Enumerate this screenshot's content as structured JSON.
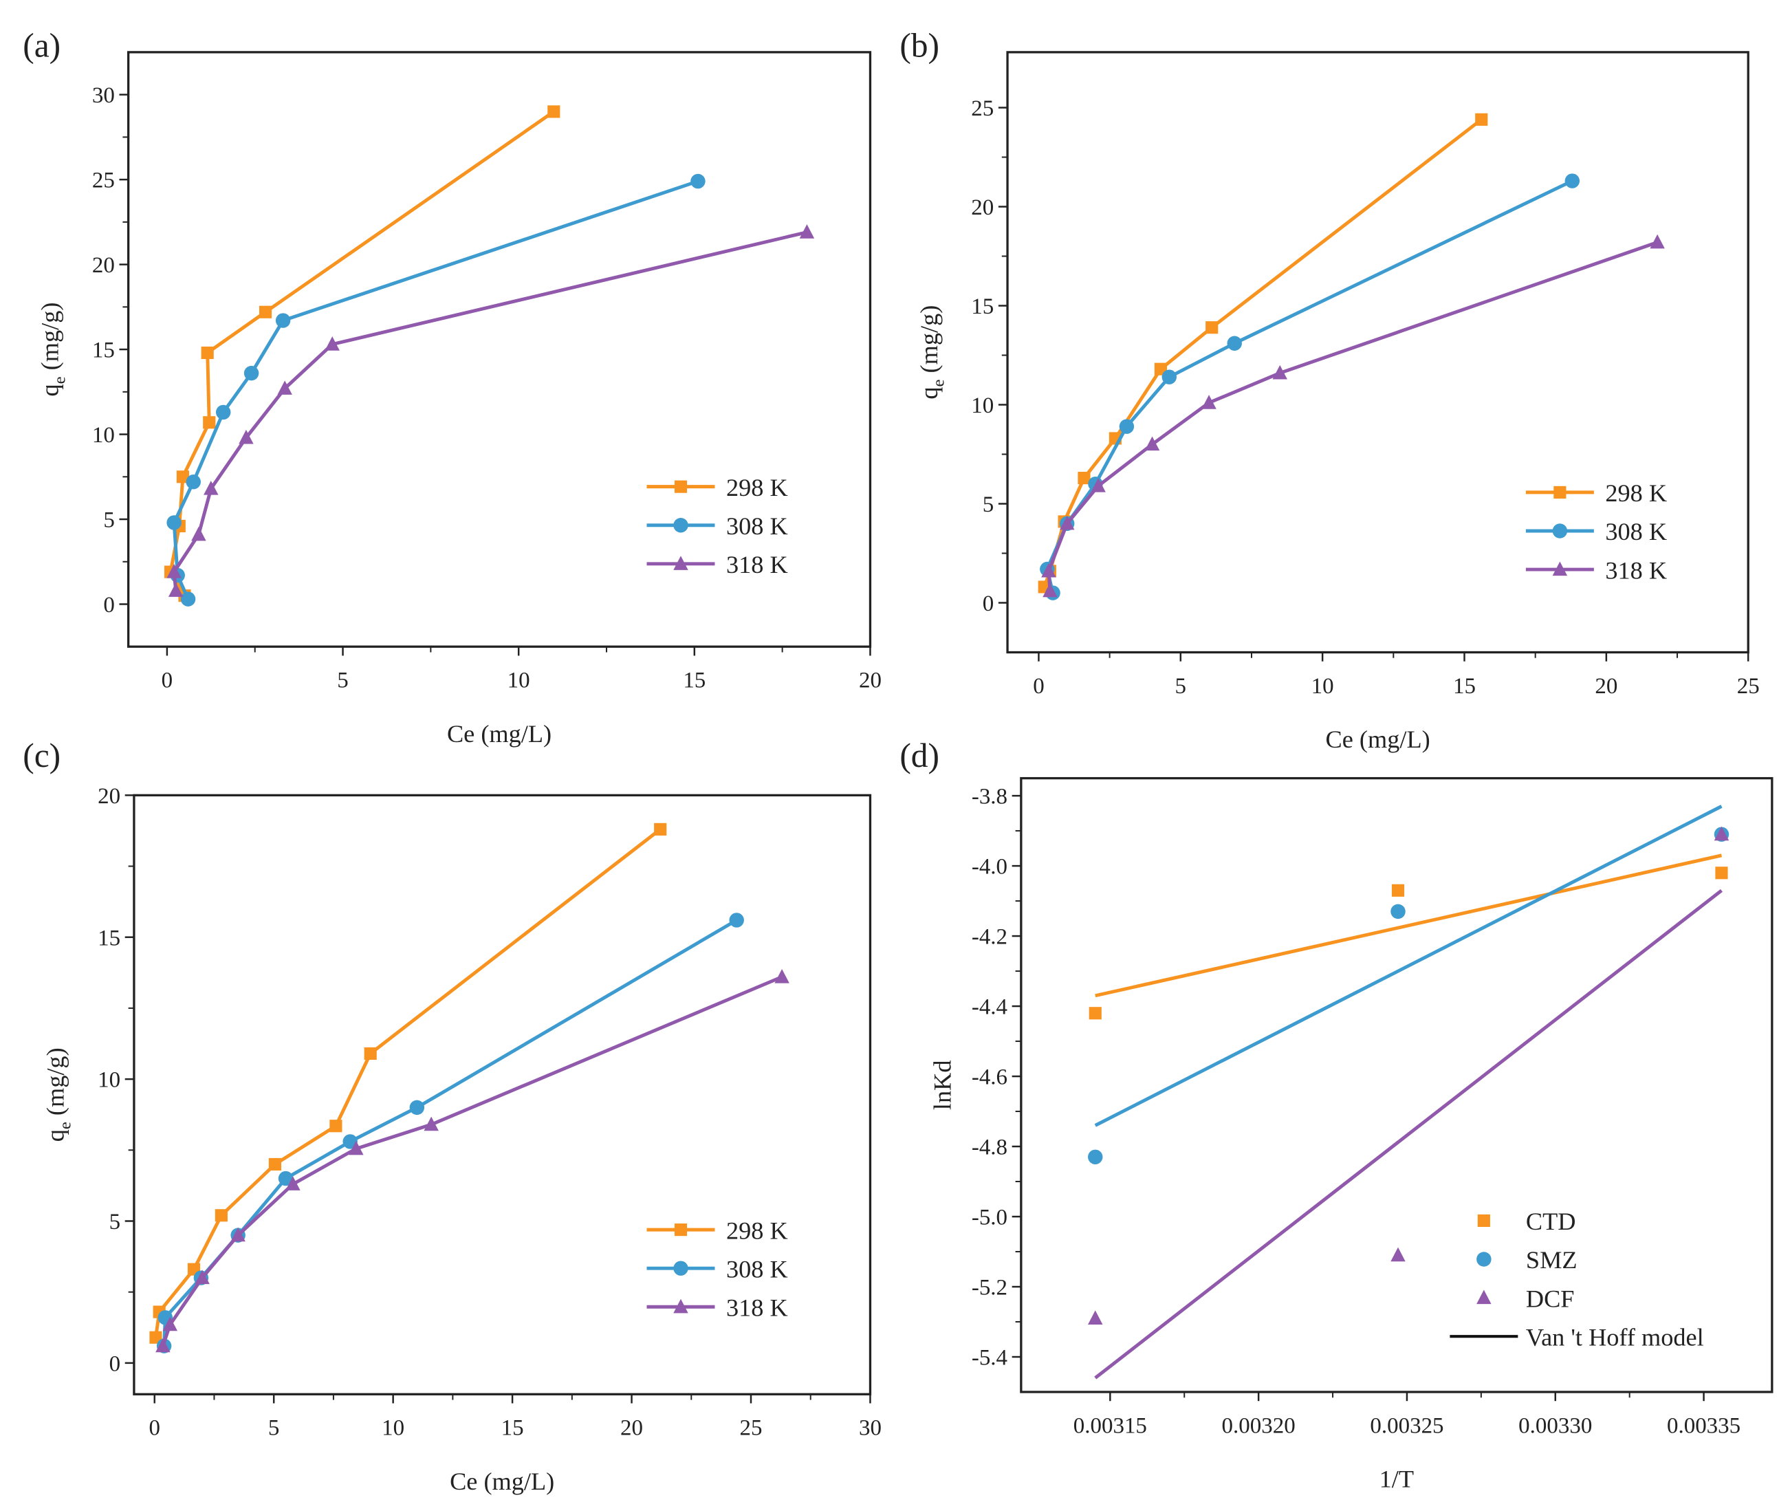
{
  "colors": {
    "c298": "#F7931E",
    "c308": "#3E9BCF",
    "c318": "#9159AC",
    "fit_legend": "#111111"
  },
  "chart_data": [
    {
      "panel": "(a)",
      "type": "line",
      "xlabel": "Ce (mg/L)",
      "ylabel_main": "q",
      "ylabel_sub": "e",
      "ylabel_rest": " (mg/g)",
      "xlim": [
        -1.1,
        20
      ],
      "ylim": [
        -2.5,
        32.5
      ],
      "xticks": [
        0,
        5,
        10,
        15,
        20
      ],
      "yticks": [
        0,
        5,
        10,
        15,
        20,
        25,
        30
      ],
      "legend_position": "bottom-right",
      "series": [
        {
          "name": "298 K",
          "marker": "square",
          "color_key": "c298",
          "x": [
            0.5,
            0.1,
            0.35,
            0.45,
            1.2,
            1.15,
            2.8,
            11.0
          ],
          "y": [
            0.5,
            1.9,
            4.6,
            7.5,
            10.7,
            14.8,
            17.2,
            29.0
          ]
        },
        {
          "name": "308 K",
          "marker": "circle",
          "color_key": "c308",
          "x": [
            0.6,
            0.3,
            0.2,
            0.75,
            1.6,
            2.4,
            3.3,
            15.1
          ],
          "y": [
            0.3,
            1.7,
            4.8,
            7.2,
            11.3,
            13.6,
            16.7,
            24.9
          ]
        },
        {
          "name": "318 K",
          "marker": "triangle",
          "color_key": "c318",
          "x": [
            0.25,
            0.2,
            0.9,
            1.25,
            2.25,
            3.35,
            4.7,
            18.2
          ],
          "y": [
            0.8,
            1.9,
            4.1,
            6.8,
            9.8,
            12.7,
            15.3,
            21.9
          ]
        }
      ]
    },
    {
      "panel": "(b)",
      "type": "line",
      "xlabel": "Ce (mg/L)",
      "ylabel_main": "q",
      "ylabel_sub": "e",
      "ylabel_rest": " (mg/g)",
      "xlim": [
        -1.1,
        25
      ],
      "ylim": [
        -2.5,
        27.8
      ],
      "xticks": [
        0,
        5,
        10,
        15,
        20,
        25
      ],
      "yticks": [
        0,
        5,
        10,
        15,
        20,
        25
      ],
      "legend_position": "bottom-right",
      "series": [
        {
          "name": "298 K",
          "marker": "square",
          "color_key": "c298",
          "x": [
            0.2,
            0.4,
            0.9,
            1.6,
            2.7,
            4.3,
            6.1,
            15.6
          ],
          "y": [
            0.8,
            1.6,
            4.1,
            6.3,
            8.3,
            11.8,
            13.9,
            24.4
          ]
        },
        {
          "name": "308 K",
          "marker": "circle",
          "color_key": "c308",
          "x": [
            0.5,
            0.3,
            1.0,
            2.0,
            3.1,
            4.6,
            6.9,
            18.8
          ],
          "y": [
            0.5,
            1.7,
            4.0,
            6.0,
            8.9,
            11.4,
            13.1,
            21.3
          ]
        },
        {
          "name": "318 K",
          "marker": "triangle",
          "color_key": "c318",
          "x": [
            0.4,
            0.35,
            1.0,
            2.1,
            4.0,
            6.0,
            8.5,
            21.8
          ],
          "y": [
            0.6,
            1.6,
            4.0,
            5.9,
            8.0,
            10.1,
            11.6,
            18.2
          ]
        }
      ]
    },
    {
      "panel": "(c)",
      "type": "line",
      "xlabel": "Ce (mg/L)",
      "ylabel_main": "q",
      "ylabel_sub": "e",
      "ylabel_rest": " (mg/g)",
      "xlim": [
        -0.86,
        30
      ],
      "ylim": [
        -1.1,
        20
      ],
      "xticks": [
        0,
        5,
        10,
        15,
        20,
        25,
        30
      ],
      "yticks": [
        0,
        5,
        10,
        15,
        20
      ],
      "legend_position": "bottom-right",
      "series": [
        {
          "name": "298 K",
          "marker": "square",
          "color_key": "c298",
          "x": [
            0.05,
            0.2,
            1.65,
            2.8,
            5.05,
            7.6,
            9.05,
            21.2
          ],
          "y": [
            0.9,
            1.8,
            3.3,
            5.2,
            7.0,
            8.35,
            10.9,
            18.8
          ]
        },
        {
          "name": "308 K",
          "marker": "circle",
          "color_key": "c308",
          "x": [
            0.4,
            0.45,
            1.95,
            3.5,
            5.5,
            8.2,
            11.0,
            24.4
          ],
          "y": [
            0.6,
            1.6,
            3.0,
            4.5,
            6.5,
            7.8,
            9.0,
            15.6
          ]
        },
        {
          "name": "318 K",
          "marker": "triangle",
          "color_key": "c318",
          "x": [
            0.35,
            0.65,
            2.0,
            3.5,
            5.8,
            8.45,
            11.6,
            26.3
          ],
          "y": [
            0.6,
            1.35,
            3.0,
            4.5,
            6.3,
            7.55,
            8.4,
            13.6
          ]
        }
      ]
    },
    {
      "panel": "(d)",
      "type": "scatter",
      "xlabel": "1/T",
      "ylabel_main": "lnKd",
      "ylabel_sub": "",
      "ylabel_rest": "",
      "xlim": [
        0.00312,
        0.003373
      ],
      "ylim": [
        -5.5,
        -3.75
      ],
      "xticks": [
        "0.00315",
        "0.00320",
        "0.00325",
        "0.00330",
        "0.00335"
      ],
      "yticks": [
        "-3.8",
        "-4.0",
        "-4.2",
        "-4.4",
        "-4.6",
        "-4.8",
        "-5.0",
        "-5.2",
        "-5.4"
      ],
      "legend_position": "bottom-right",
      "fit_legend": "Van 't Hoff model",
      "series": [
        {
          "name": "CTD",
          "marker": "square",
          "color_key": "c298",
          "x": [
            0.003145,
            0.003247,
            0.003356
          ],
          "y": [
            -4.42,
            -4.07,
            -4.02
          ],
          "fit": {
            "x": [
              0.003145,
              0.003356
            ],
            "y": [
              -4.37,
              -3.97
            ]
          }
        },
        {
          "name": "SMZ",
          "marker": "circle",
          "color_key": "c308",
          "x": [
            0.003145,
            0.003247,
            0.003356
          ],
          "y": [
            -4.83,
            -4.13,
            -3.91
          ],
          "fit": {
            "x": [
              0.003145,
              0.003356
            ],
            "y": [
              -4.74,
              -3.83
            ]
          }
        },
        {
          "name": "DCF",
          "marker": "triangle",
          "color_key": "c318",
          "x": [
            0.003145,
            0.003247,
            0.003356
          ],
          "y": [
            -5.29,
            -5.11,
            -3.91
          ],
          "fit": {
            "x": [
              0.003145,
              0.003356
            ],
            "y": [
              -5.46,
              -4.07
            ]
          }
        }
      ]
    }
  ]
}
